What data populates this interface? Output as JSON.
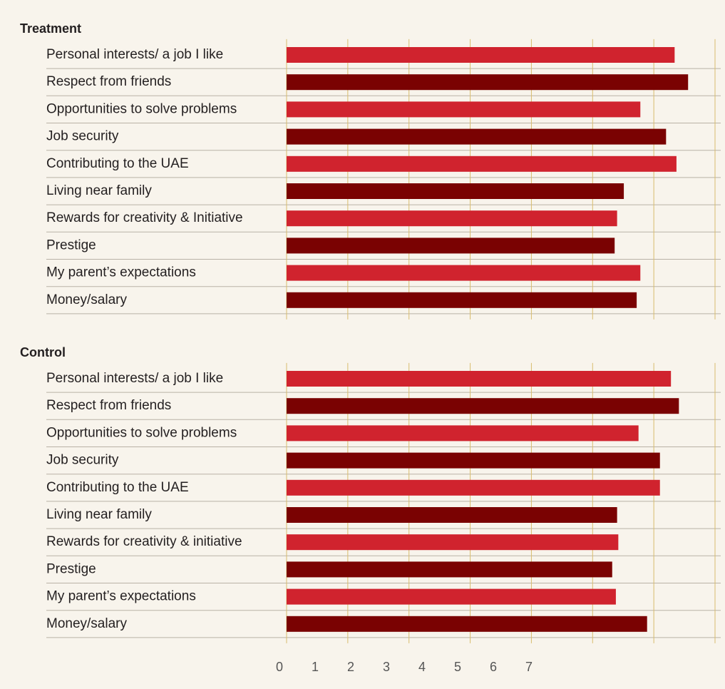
{
  "chart_data": [
    {
      "type": "barh",
      "title": "Treatment",
      "categories": [
        "Personal interests/ a job I like",
        "Respect from friends",
        "Opportunities to solve problems",
        "Job security",
        "Contributing to the UAE",
        "Living near family",
        "Rewards for creativity & Initiative",
        "Prestige",
        "My parent’s expectations",
        "Money/salary"
      ],
      "values": [
        6.34,
        6.56,
        5.78,
        6.2,
        6.37,
        5.51,
        5.4,
        5.36,
        5.78,
        5.72
      ],
      "colors": [
        "#d0232e",
        "#7a0202",
        "#d0232e",
        "#7a0202",
        "#d0232e",
        "#7a0202",
        "#d0232e",
        "#7a0202",
        "#d0232e",
        "#7a0202"
      ],
      "xlim": [
        0,
        7
      ],
      "xticks": [
        0,
        1,
        2,
        3,
        4,
        5,
        6,
        7
      ],
      "grid": true
    },
    {
      "type": "barh",
      "title": "Control",
      "categories": [
        "Personal interests/ a job I like",
        "Respect from friends",
        "Opportunities to solve problems",
        "Job security",
        "Contributing to the UAE",
        "Living near family",
        "Rewards for creativity & initiative",
        "Prestige",
        "My parent’s expectations",
        "Money/salary"
      ],
      "values": [
        6.28,
        6.41,
        5.75,
        6.1,
        6.1,
        5.4,
        5.42,
        5.32,
        5.38,
        5.89
      ],
      "colors": [
        "#d0232e",
        "#7a0202",
        "#d0232e",
        "#7a0202",
        "#d0232e",
        "#7a0202",
        "#d0232e",
        "#7a0202",
        "#d0232e",
        "#7a0202"
      ],
      "xlim": [
        0,
        7
      ],
      "xticks": [
        0,
        1,
        2,
        3,
        4,
        5,
        6,
        7
      ],
      "grid": true
    }
  ]
}
